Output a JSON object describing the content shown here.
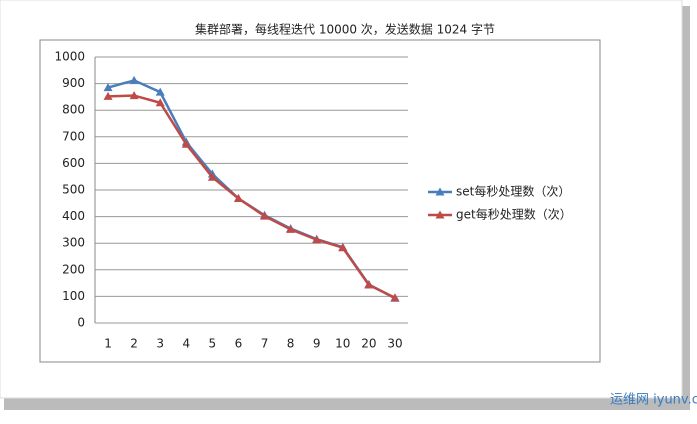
{
  "chart_data": {
    "type": "line",
    "title": "集群部署，每线程迭代 10000 次，发送数据 1024 字节",
    "categories": [
      "1",
      "2",
      "3",
      "4",
      "5",
      "6",
      "7",
      "8",
      "9",
      "10",
      "20",
      "30"
    ],
    "series": [
      {
        "name": "set每秒处理数（次）",
        "color": "#4a7ebb",
        "values": [
          885,
          912,
          868,
          680,
          560,
          468,
          405,
          355,
          315,
          285,
          145,
          93
        ]
      },
      {
        "name": "get每秒处理数（次）",
        "color": "#be4b48",
        "values": [
          852,
          855,
          828,
          672,
          548,
          468,
          402,
          352,
          313,
          283,
          143,
          95
        ]
      }
    ],
    "ylim": [
      0,
      1000
    ],
    "yticks": [
      0,
      100,
      200,
      300,
      400,
      500,
      600,
      700,
      800,
      900,
      1000
    ],
    "grid": true,
    "legend": "right",
    "watermark": "运维网 iyunv.com"
  }
}
